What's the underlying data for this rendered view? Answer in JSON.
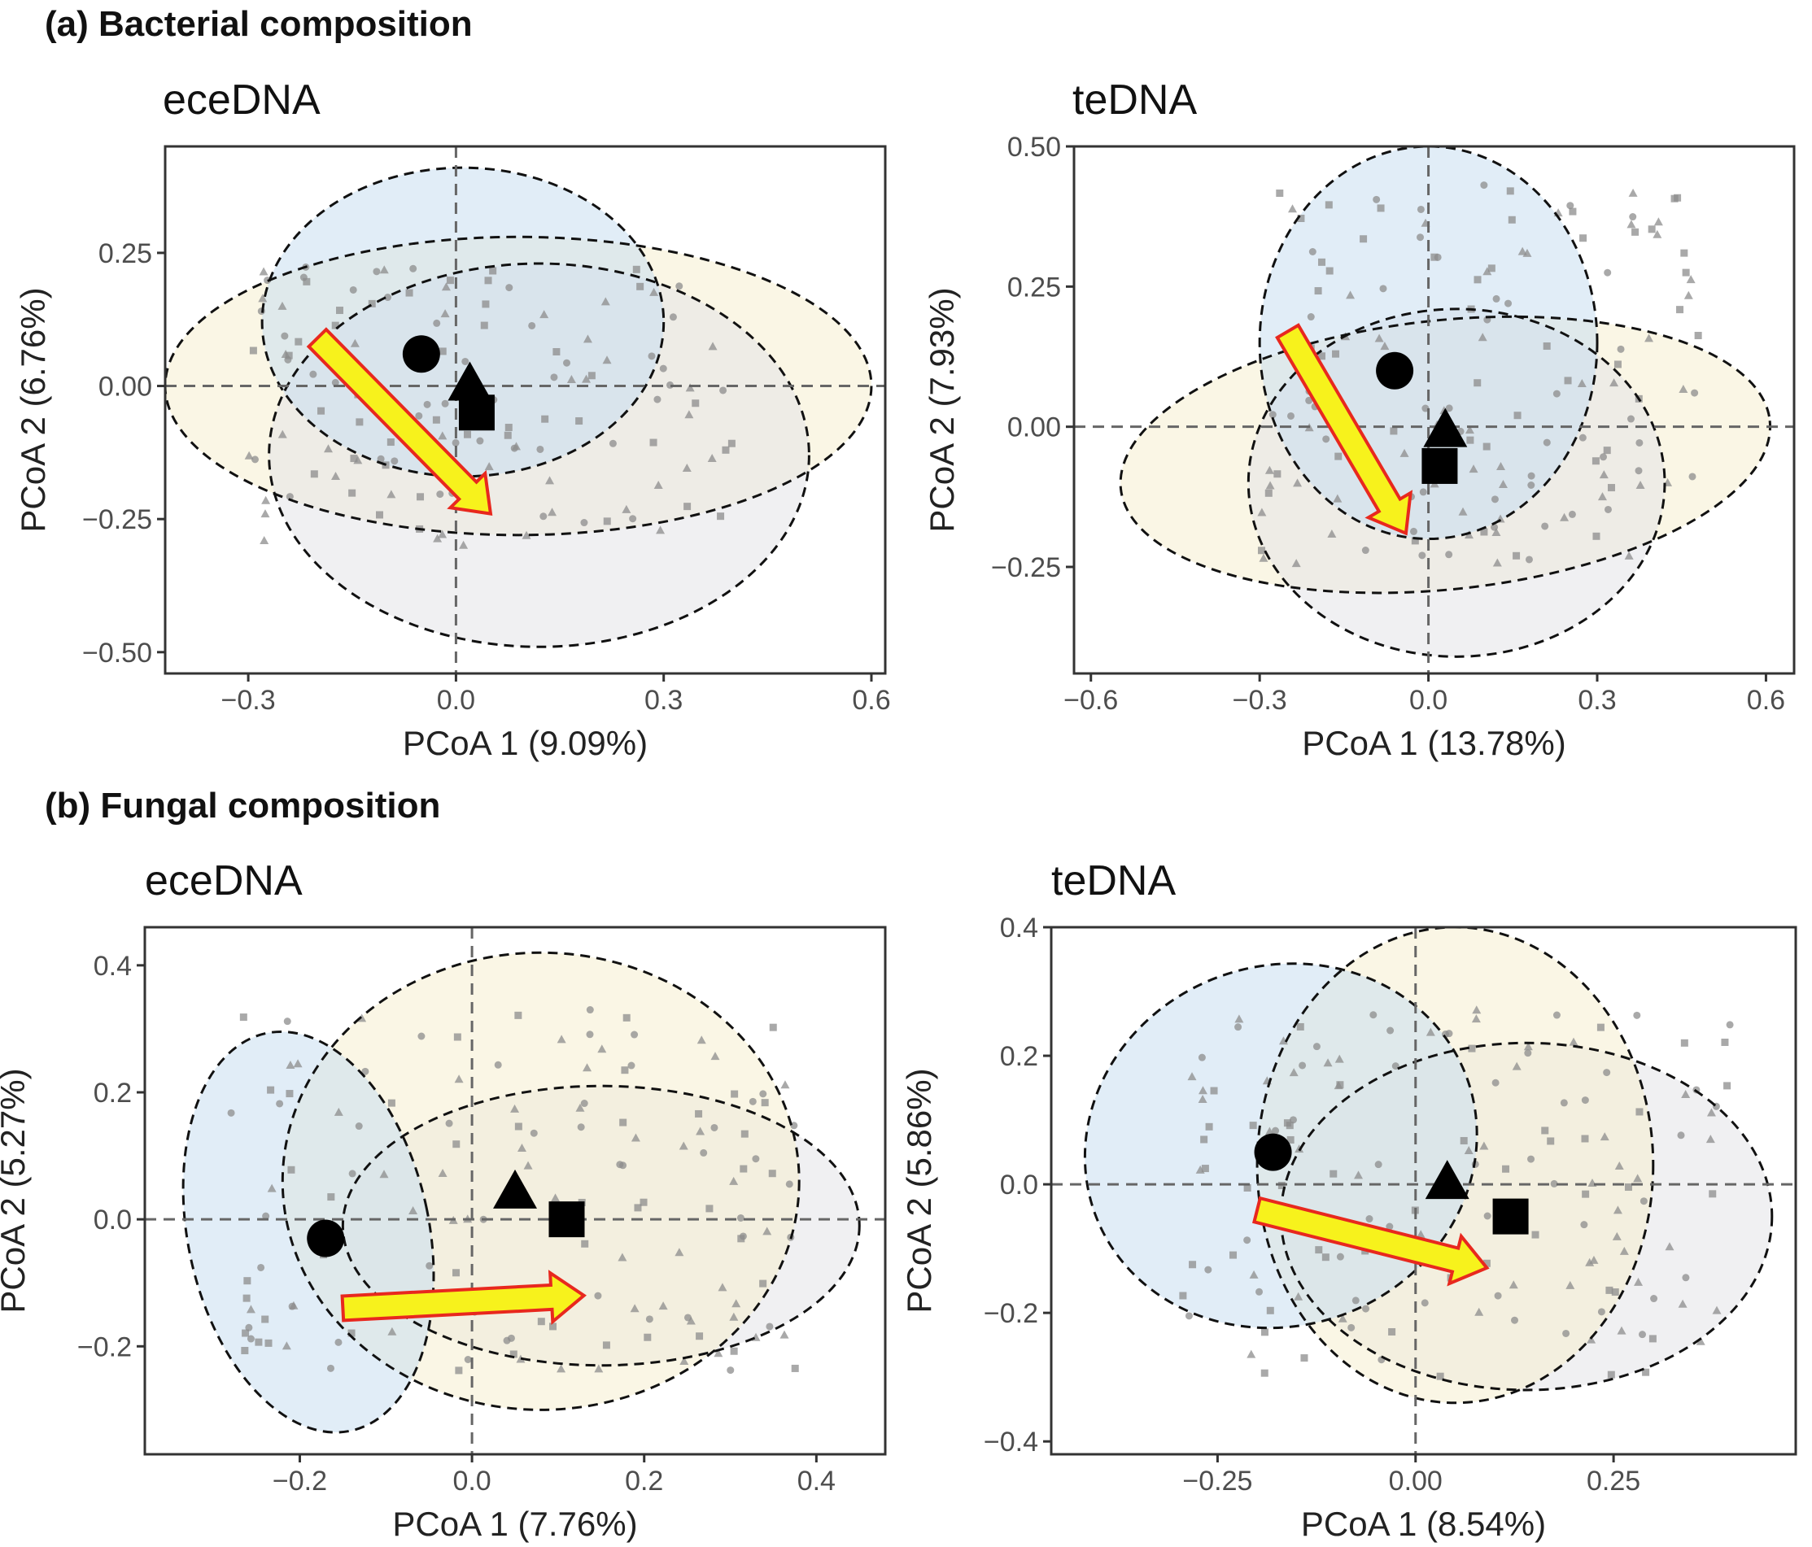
{
  "figure": {
    "section_a": "(a)  Bacterial composition",
    "section_b": "(b)  Fungal composition"
  },
  "colors": {
    "ellipse_fill_1": "#c9def0",
    "ellipse_fill_2": "#f5efcf",
    "ellipse_fill_3": "#e4e4e8",
    "point_color": "#8c8c8c",
    "centroid_color": "#000000",
    "arrow_fill": "#f7f21c",
    "arrow_stroke": "#e8281e",
    "reference_line": "#666666"
  },
  "chart_data": [
    {
      "type": "scatter",
      "title": "eceDNA",
      "xlabel": "PCoA 1 (9.09%)",
      "ylabel": "PCoA 2 (6.76%)",
      "xlim": [
        -0.42,
        0.62
      ],
      "ylim": [
        -0.54,
        0.45
      ],
      "xticks": [
        -0.3,
        0.0,
        0.3,
        0.6
      ],
      "xtick_labels": [
        "−0.3",
        "0.0",
        "0.3",
        "0.6"
      ],
      "yticks": [
        0.25,
        0.0,
        -0.25,
        -0.5
      ],
      "ytick_labels": [
        "0.25",
        "0.00",
        "−0.25",
        "−0.50"
      ],
      "ellipses": [
        {
          "fill": "ellipse_fill_2",
          "cx": 0.09,
          "cy": 0.0,
          "rx": 0.51,
          "ry": 0.28,
          "angle": 0
        },
        {
          "fill": "ellipse_fill_3",
          "cx": 0.12,
          "cy": -0.13,
          "rx": 0.39,
          "ry": 0.36,
          "angle": 0
        },
        {
          "fill": "ellipse_fill_1",
          "cx": 0.01,
          "cy": 0.12,
          "rx": 0.29,
          "ry": 0.29,
          "angle": 0
        }
      ],
      "centroids": [
        {
          "shape": "circle",
          "x": -0.05,
          "y": 0.06
        },
        {
          "shape": "triangle",
          "x": 0.02,
          "y": 0.0
        },
        {
          "shape": "square",
          "x": 0.03,
          "y": -0.05
        }
      ],
      "arrow": {
        "from": [
          -0.2,
          0.09
        ],
        "to": [
          0.05,
          -0.24
        ]
      },
      "points": {
        "x_range": [
          -0.3,
          0.4
        ],
        "y_range": [
          -0.3,
          0.23
        ],
        "count": 130
      }
    },
    {
      "type": "scatter",
      "title": "teDNA",
      "xlabel": "PCoA 1 (13.78%)",
      "ylabel": "PCoA 2 (7.93%)",
      "xlim": [
        -0.63,
        0.65
      ],
      "ylim": [
        -0.44,
        0.5
      ],
      "xticks": [
        -0.6,
        -0.3,
        0.0,
        0.3,
        0.6
      ],
      "xtick_labels": [
        "−0.6",
        "−0.3",
        "0.0",
        "0.3",
        "0.6"
      ],
      "yticks": [
        0.5,
        0.25,
        0.0,
        -0.25
      ],
      "ytick_labels": [
        "0.50",
        "0.25",
        "0.00",
        "−0.25"
      ],
      "ellipses": [
        {
          "fill": "ellipse_fill_2",
          "cx": 0.03,
          "cy": -0.05,
          "rx": 0.58,
          "ry": 0.24,
          "angle": -6
        },
        {
          "fill": "ellipse_fill_3",
          "cx": 0.05,
          "cy": -0.1,
          "rx": 0.37,
          "ry": 0.31,
          "angle": 0
        },
        {
          "fill": "ellipse_fill_1",
          "cx": 0.0,
          "cy": 0.15,
          "rx": 0.3,
          "ry": 0.35,
          "angle": 0
        }
      ],
      "centroids": [
        {
          "shape": "circle",
          "x": -0.06,
          "y": 0.1
        },
        {
          "shape": "triangle",
          "x": 0.03,
          "y": -0.01
        },
        {
          "shape": "square",
          "x": 0.02,
          "y": -0.07
        }
      ],
      "arrow": {
        "from": [
          -0.25,
          0.17
        ],
        "to": [
          -0.04,
          -0.19
        ]
      },
      "points": {
        "x_range": [
          -0.3,
          0.48
        ],
        "y_range": [
          -0.25,
          0.45
        ],
        "count": 150
      }
    },
    {
      "type": "scatter",
      "title": "eceDNA",
      "xlabel": "PCoA 1 (7.76%)",
      "ylabel": "PCoA 2 (5.27%)",
      "xlim": [
        -0.38,
        0.48
      ],
      "ylim": [
        -0.37,
        0.46
      ],
      "xticks": [
        -0.2,
        0.0,
        0.2,
        0.4
      ],
      "xtick_labels": [
        "−0.2",
        "0.0",
        "0.2",
        "0.4"
      ],
      "yticks": [
        0.4,
        0.2,
        0.0,
        -0.2
      ],
      "ytick_labels": [
        "0.4",
        "0.2",
        "0.0",
        "−0.2"
      ],
      "ellipses": [
        {
          "fill": "ellipse_fill_3",
          "cx": 0.15,
          "cy": -0.01,
          "rx": 0.3,
          "ry": 0.22,
          "angle": 0
        },
        {
          "fill": "ellipse_fill_2",
          "cx": 0.08,
          "cy": 0.06,
          "rx": 0.3,
          "ry": 0.36,
          "angle": 0
        },
        {
          "fill": "ellipse_fill_1",
          "cx": -0.19,
          "cy": -0.02,
          "rx": 0.14,
          "ry": 0.32,
          "angle": -12
        }
      ],
      "centroids": [
        {
          "shape": "circle",
          "x": -0.17,
          "y": -0.03
        },
        {
          "shape": "triangle",
          "x": 0.05,
          "y": 0.04
        },
        {
          "shape": "square",
          "x": 0.11,
          "y": 0.0
        }
      ],
      "arrow": {
        "from": [
          -0.15,
          -0.14
        ],
        "to": [
          0.13,
          -0.12
        ]
      },
      "points": {
        "x_range": [
          -0.28,
          0.38
        ],
        "y_range": [
          -0.25,
          0.33
        ],
        "count": 140
      }
    },
    {
      "type": "scatter",
      "title": "teDNA",
      "xlabel": "PCoA 1 (8.54%)",
      "ylabel": "PCoA 2 (5.86%)",
      "xlim": [
        -0.46,
        0.48
      ],
      "ylim": [
        -0.42,
        0.4
      ],
      "xticks": [
        -0.25,
        0.0,
        0.25
      ],
      "xtick_labels": [
        "−0.25",
        "0.00",
        "0.25"
      ],
      "yticks": [
        0.4,
        0.2,
        0.0,
        -0.2,
        -0.4
      ],
      "ytick_labels": [
        "0.4",
        "0.2",
        "0.0",
        "−0.2",
        "−0.4"
      ],
      "ellipses": [
        {
          "fill": "ellipse_fill_3",
          "cx": 0.14,
          "cy": -0.05,
          "rx": 0.31,
          "ry": 0.27,
          "angle": 0
        },
        {
          "fill": "ellipse_fill_2",
          "cx": 0.05,
          "cy": 0.03,
          "rx": 0.25,
          "ry": 0.37,
          "angle": 0
        },
        {
          "fill": "ellipse_fill_1",
          "cx": -0.17,
          "cy": 0.06,
          "rx": 0.25,
          "ry": 0.28,
          "angle": -20
        }
      ],
      "centroids": [
        {
          "shape": "circle",
          "x": -0.18,
          "y": 0.05
        },
        {
          "shape": "triangle",
          "x": 0.04,
          "y": 0.0
        },
        {
          "shape": "square",
          "x": 0.12,
          "y": -0.05
        }
      ],
      "arrow": {
        "from": [
          -0.2,
          -0.04
        ],
        "to": [
          0.09,
          -0.13
        ]
      },
      "points": {
        "x_range": [
          -0.3,
          0.4
        ],
        "y_range": [
          -0.3,
          0.28
        ],
        "count": 150
      }
    }
  ]
}
